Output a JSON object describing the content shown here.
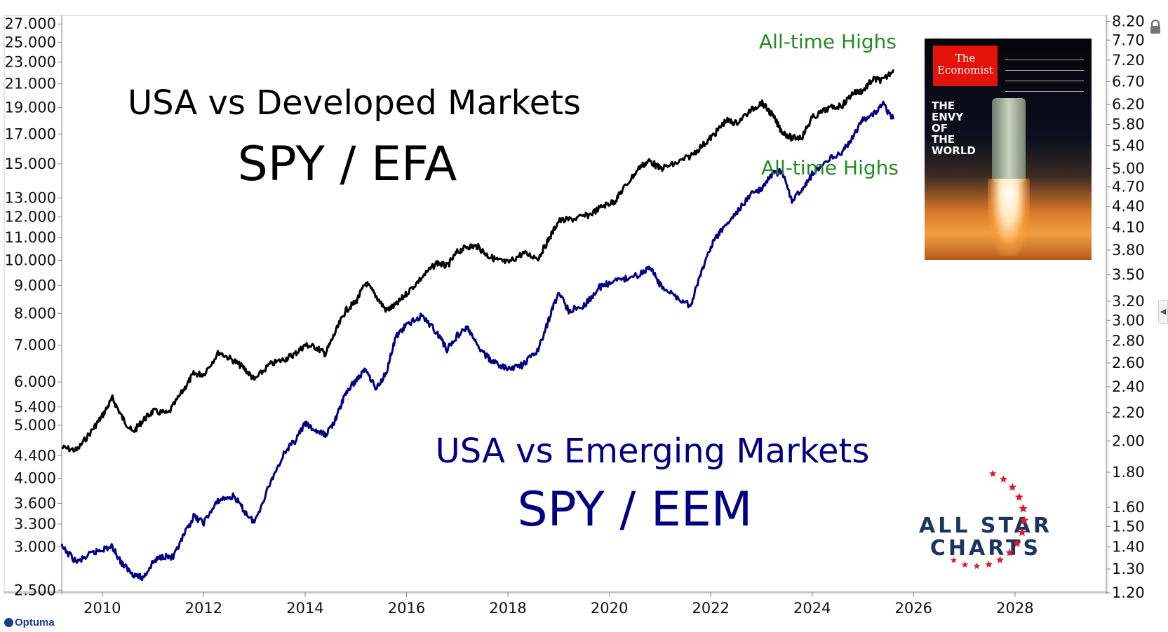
{
  "chart_data": {
    "type": "line",
    "annotations": {
      "efa_title": "USA vs Developed Markets",
      "efa_ticker": "SPY / EFA",
      "eem_title": "USA vs Emerging Markets",
      "eem_ticker": "SPY / EEM",
      "ath_top": "All-time Highs",
      "ath_bottom": "All-time Highs"
    },
    "x_axis": {
      "ticks": [
        "2010",
        "2012",
        "2014",
        "2016",
        "2018",
        "2020",
        "2022",
        "2024",
        "2026",
        "2028"
      ],
      "xlim": [
        2009.2,
        2029.8
      ]
    },
    "left_axis": {
      "scale": "log",
      "ylim": [
        2.48,
        27.5
      ],
      "ticks": [
        "2.500",
        "3.000",
        "3.300",
        "3.600",
        "4.000",
        "4.400",
        "5.000",
        "5.400",
        "6.000",
        "7.000",
        "8.000",
        "9.000",
        "10.000",
        "11.000",
        "12.000",
        "13.000",
        "15.000",
        "17.000",
        "19.000",
        "21.000",
        "23.000",
        "25.000",
        "27.000"
      ]
    },
    "right_axis": {
      "scale": "log",
      "ylim": [
        1.203,
        8.25
      ],
      "ticks": [
        "1.20",
        "1.30",
        "1.40",
        "1.50",
        "1.60",
        "1.80",
        "2.00",
        "2.20",
        "2.40",
        "2.60",
        "2.80",
        "3.00",
        "3.20",
        "3.50",
        "3.80",
        "4.10",
        "4.40",
        "4.70",
        "5.00",
        "5.40",
        "5.80",
        "6.20",
        "6.70",
        "7.20",
        "7.70",
        "8.20"
      ]
    },
    "series": [
      {
        "axis": "left",
        "color": "#000000",
        "points": [
          [
            2009.2,
            4.55
          ],
          [
            2009.5,
            4.5
          ],
          [
            2009.8,
            4.9
          ],
          [
            2010.0,
            5.2
          ],
          [
            2010.2,
            5.6
          ],
          [
            2010.4,
            5.15
          ],
          [
            2010.6,
            4.85
          ],
          [
            2010.8,
            5.1
          ],
          [
            2011.0,
            5.3
          ],
          [
            2011.3,
            5.25
          ],
          [
            2011.6,
            5.8
          ],
          [
            2011.8,
            6.2
          ],
          [
            2012.0,
            6.2
          ],
          [
            2012.3,
            6.8
          ],
          [
            2012.6,
            6.55
          ],
          [
            2012.8,
            6.35
          ],
          [
            2013.0,
            6.05
          ],
          [
            2013.3,
            6.45
          ],
          [
            2013.6,
            6.6
          ],
          [
            2013.8,
            6.75
          ],
          [
            2014.0,
            7.0
          ],
          [
            2014.2,
            6.95
          ],
          [
            2014.4,
            6.75
          ],
          [
            2014.6,
            7.4
          ],
          [
            2014.8,
            8.1
          ],
          [
            2015.0,
            8.4
          ],
          [
            2015.2,
            9.1
          ],
          [
            2015.4,
            8.6
          ],
          [
            2015.6,
            8.1
          ],
          [
            2015.8,
            8.3
          ],
          [
            2016.0,
            8.7
          ],
          [
            2016.3,
            9.3
          ],
          [
            2016.6,
            9.9
          ],
          [
            2016.8,
            9.75
          ],
          [
            2017.0,
            10.35
          ],
          [
            2017.2,
            10.6
          ],
          [
            2017.4,
            10.6
          ],
          [
            2017.6,
            10.2
          ],
          [
            2017.8,
            10.0
          ],
          [
            2018.0,
            9.9
          ],
          [
            2018.3,
            10.3
          ],
          [
            2018.6,
            10.1
          ],
          [
            2018.8,
            10.9
          ],
          [
            2019.0,
            11.8
          ],
          [
            2019.3,
            11.9
          ],
          [
            2019.6,
            12.1
          ],
          [
            2019.9,
            12.6
          ],
          [
            2020.1,
            12.8
          ],
          [
            2020.3,
            13.6
          ],
          [
            2020.6,
            14.8
          ],
          [
            2020.8,
            15.2
          ],
          [
            2021.0,
            14.7
          ],
          [
            2021.3,
            15.0
          ],
          [
            2021.6,
            15.5
          ],
          [
            2021.9,
            16.4
          ],
          [
            2022.1,
            17.1
          ],
          [
            2022.3,
            18.0
          ],
          [
            2022.5,
            17.8
          ],
          [
            2022.8,
            18.8
          ],
          [
            2023.0,
            19.4
          ],
          [
            2023.2,
            18.5
          ],
          [
            2023.4,
            17.2
          ],
          [
            2023.6,
            16.7
          ],
          [
            2023.8,
            16.8
          ],
          [
            2024.0,
            18.2
          ],
          [
            2024.3,
            18.9
          ],
          [
            2024.6,
            19.2
          ],
          [
            2024.8,
            20.2
          ],
          [
            2025.0,
            20.4
          ],
          [
            2025.2,
            21.4
          ],
          [
            2025.4,
            21.3
          ],
          [
            2025.6,
            22.3
          ]
        ]
      },
      {
        "axis": "right",
        "color": "#000080",
        "points": [
          [
            2009.2,
            1.4
          ],
          [
            2009.5,
            1.33
          ],
          [
            2009.8,
            1.37
          ],
          [
            2010.0,
            1.39
          ],
          [
            2010.2,
            1.4
          ],
          [
            2010.4,
            1.32
          ],
          [
            2010.6,
            1.28
          ],
          [
            2010.8,
            1.26
          ],
          [
            2011.0,
            1.33
          ],
          [
            2011.2,
            1.36
          ],
          [
            2011.4,
            1.35
          ],
          [
            2011.6,
            1.45
          ],
          [
            2011.8,
            1.55
          ],
          [
            2012.0,
            1.52
          ],
          [
            2012.3,
            1.64
          ],
          [
            2012.6,
            1.66
          ],
          [
            2012.8,
            1.58
          ],
          [
            2013.0,
            1.52
          ],
          [
            2013.3,
            1.73
          ],
          [
            2013.6,
            1.93
          ],
          [
            2013.8,
            2.0
          ],
          [
            2014.0,
            2.12
          ],
          [
            2014.2,
            2.07
          ],
          [
            2014.4,
            2.04
          ],
          [
            2014.6,
            2.15
          ],
          [
            2014.8,
            2.35
          ],
          [
            2015.0,
            2.45
          ],
          [
            2015.2,
            2.55
          ],
          [
            2015.4,
            2.38
          ],
          [
            2015.6,
            2.52
          ],
          [
            2015.8,
            2.85
          ],
          [
            2016.0,
            2.95
          ],
          [
            2016.3,
            3.05
          ],
          [
            2016.6,
            2.88
          ],
          [
            2016.8,
            2.72
          ],
          [
            2017.0,
            2.85
          ],
          [
            2017.2,
            2.93
          ],
          [
            2017.4,
            2.75
          ],
          [
            2017.6,
            2.65
          ],
          [
            2017.8,
            2.58
          ],
          [
            2018.0,
            2.55
          ],
          [
            2018.3,
            2.58
          ],
          [
            2018.6,
            2.72
          ],
          [
            2018.8,
            3.0
          ],
          [
            2019.0,
            3.3
          ],
          [
            2019.2,
            3.1
          ],
          [
            2019.5,
            3.15
          ],
          [
            2019.8,
            3.35
          ],
          [
            2020.0,
            3.4
          ],
          [
            2020.3,
            3.45
          ],
          [
            2020.6,
            3.5
          ],
          [
            2020.8,
            3.6
          ],
          [
            2021.0,
            3.38
          ],
          [
            2021.3,
            3.25
          ],
          [
            2021.6,
            3.15
          ],
          [
            2021.8,
            3.5
          ],
          [
            2022.0,
            3.85
          ],
          [
            2022.2,
            4.05
          ],
          [
            2022.5,
            4.3
          ],
          [
            2022.8,
            4.6
          ],
          [
            2023.0,
            4.65
          ],
          [
            2023.2,
            4.9
          ],
          [
            2023.4,
            4.95
          ],
          [
            2023.6,
            4.5
          ],
          [
            2023.8,
            4.65
          ],
          [
            2024.0,
            4.9
          ],
          [
            2024.3,
            5.15
          ],
          [
            2024.6,
            5.3
          ],
          [
            2024.8,
            5.55
          ],
          [
            2025.0,
            5.9
          ],
          [
            2025.2,
            6.0
          ],
          [
            2025.4,
            6.2
          ],
          [
            2025.6,
            5.9
          ]
        ]
      }
    ],
    "legend_text": "",
    "colors": {
      "efa_text": "#000000",
      "eem_text": "#000080",
      "ath_text": "#228b22",
      "axis": "#888888"
    },
    "inset": {
      "masthead": "The Economist",
      "headline": [
        "THE",
        "ENVY",
        "OF",
        "THE",
        "WORLD"
      ]
    },
    "logo": {
      "line1": "ALL STAR",
      "line2": "CHARTS"
    },
    "watermark": "Optuma"
  }
}
